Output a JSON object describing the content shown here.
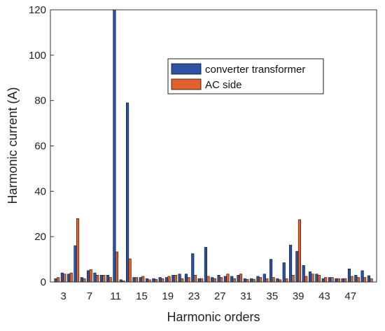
{
  "chart_data": {
    "type": "bar",
    "title": "",
    "xlabel": "Harmonic orders",
    "ylabel": "Harmonic current (A)",
    "xlim": [
      1,
      51
    ],
    "ylim": [
      0,
      120
    ],
    "yticks": [
      0,
      20,
      40,
      60,
      80,
      100,
      120
    ],
    "xticks": [
      3,
      7,
      11,
      15,
      19,
      23,
      27,
      31,
      35,
      39,
      43,
      47
    ],
    "legend_position": "top-right",
    "grid": false,
    "categories": [
      2,
      3,
      4,
      5,
      6,
      7,
      8,
      9,
      10,
      11,
      12,
      13,
      14,
      15,
      16,
      17,
      18,
      19,
      20,
      21,
      22,
      23,
      24,
      25,
      26,
      27,
      28,
      29,
      30,
      31,
      32,
      33,
      34,
      35,
      36,
      37,
      38,
      39,
      40,
      41,
      42,
      43,
      44,
      45,
      46,
      47,
      48,
      49,
      50
    ],
    "series": [
      {
        "name": "converter transformer",
        "color": "#2b52a3",
        "values": [
          1.5,
          4,
          3.5,
          16,
          2,
          5,
          4,
          3,
          3,
          120,
          1,
          79,
          2,
          2,
          1.5,
          1.5,
          2,
          2,
          3,
          3.5,
          3.5,
          12.5,
          1.5,
          15.3,
          2,
          3,
          2.5,
          2.5,
          3,
          1.5,
          1.5,
          2.5,
          3.5,
          10,
          1.5,
          8.5,
          16.3,
          13.5,
          7.3,
          4.5,
          3.5,
          1.5,
          2,
          1.5,
          1.5,
          5.8,
          3,
          5,
          2.8
        ]
      },
      {
        "name": "AC side",
        "color": "#e0622a",
        "values": [
          2,
          3.5,
          4,
          28,
          1.5,
          5.5,
          3,
          3,
          2,
          13.3,
          0.5,
          10.2,
          2,
          2.5,
          1,
          1.2,
          1.5,
          2.5,
          3,
          1.5,
          2,
          3,
          1.5,
          2.5,
          1.5,
          2,
          3.5,
          1.5,
          3.5,
          1.2,
          1.2,
          2,
          1.5,
          2,
          1,
          1.5,
          3,
          27.5,
          2.5,
          3.5,
          3,
          2,
          2,
          1.5,
          1.5,
          2.5,
          2,
          2,
          1.5
        ]
      }
    ]
  }
}
